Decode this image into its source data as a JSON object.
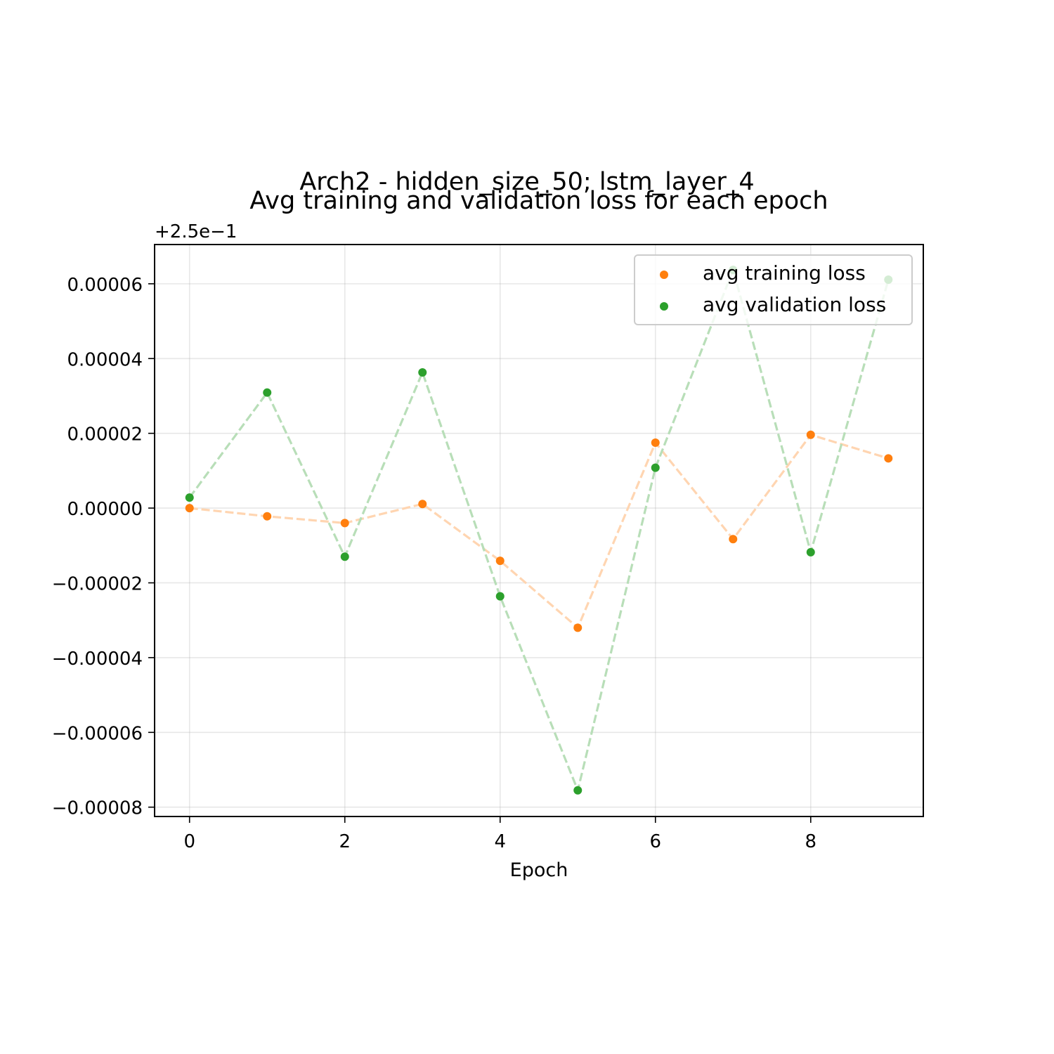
{
  "chart_data": {
    "type": "scatter",
    "title_line1": "Arch2 - hidden_size_50; lstm_layer_4",
    "title_line2": "Avg training and validation loss for each epoch",
    "xlabel": "Epoch",
    "ylabel": "",
    "y_offset_label": "+2.5e−1",
    "y_offset": 0.25,
    "xlim": [
      -0.45,
      9.45
    ],
    "ylim": [
      -8.25e-05,
      7.05e-05
    ],
    "x_ticks": [
      0,
      2,
      4,
      6,
      8
    ],
    "x_tick_labels": [
      "0",
      "2",
      "4",
      "6",
      "8"
    ],
    "y_ticks": [
      -8e-05,
      -6e-05,
      -4e-05,
      -2e-05,
      0,
      2e-05,
      4e-05,
      6e-05
    ],
    "y_tick_labels": [
      "−0.00008",
      "−0.00006",
      "−0.00004",
      "−0.00002",
      "0.00000",
      "0.00002",
      "0.00004",
      "0.00006"
    ],
    "grid": true,
    "legend_position": "top-right",
    "x": [
      0,
      1,
      2,
      3,
      4,
      5,
      6,
      7,
      8,
      9
    ],
    "series": [
      {
        "name": "avg training loss",
        "color": "#ff7f0e",
        "line_color": "#ffd5b1",
        "values": [
          0.0,
          -2.2e-06,
          -4e-06,
          1.1e-06,
          -1.41e-05,
          -3.2e-05,
          1.75e-05,
          -8.3e-06,
          1.96e-05,
          1.33e-05
        ]
      },
      {
        "name": "avg validation loss",
        "color": "#2ca02c",
        "line_color": "#b8deb8",
        "values": [
          2.8e-06,
          3.09e-05,
          -1.3e-05,
          3.63e-05,
          -2.36e-05,
          -7.55e-05,
          1.08e-05,
          6.37e-05,
          -1.18e-05,
          6.11e-05
        ]
      }
    ]
  }
}
